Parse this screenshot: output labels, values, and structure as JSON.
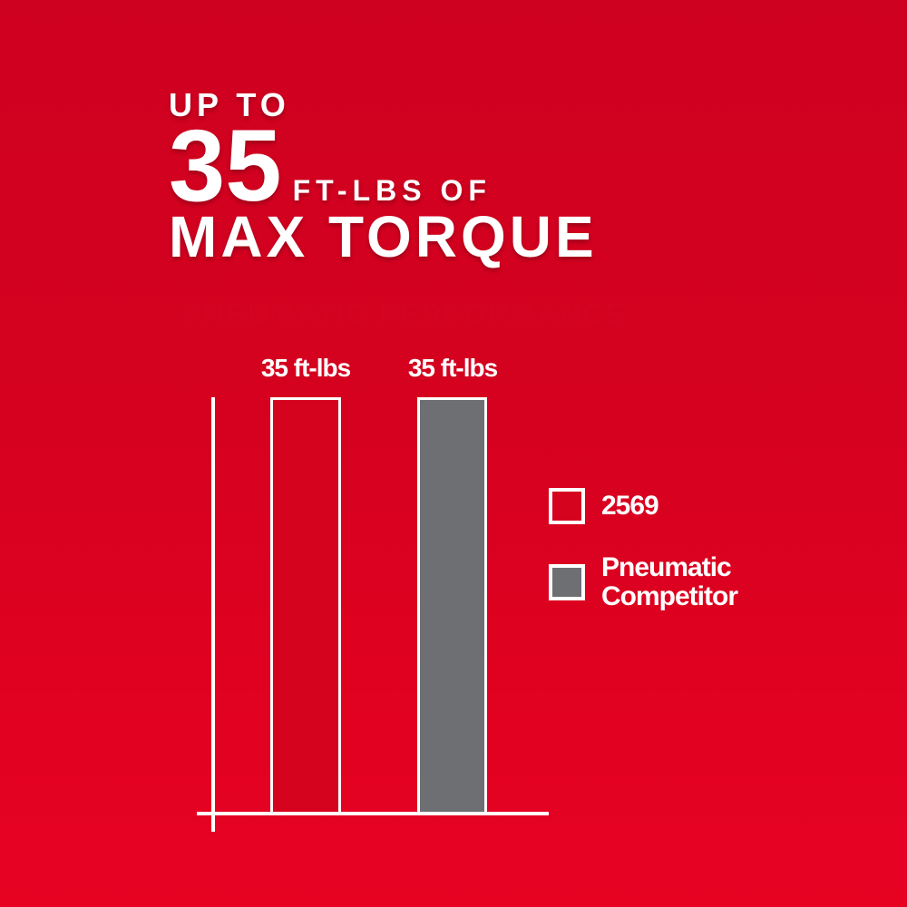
{
  "header": {
    "eyebrow": "UP TO",
    "big_value": "35",
    "unit_phrase": "FT-LBS OF",
    "headline": "MAX TORQUE"
  },
  "chart_data": {
    "type": "bar",
    "title": "PNEUMATIC PERFORMANCE",
    "categories": [
      "2569",
      "Pneumatic Competitor"
    ],
    "values": [
      35,
      35
    ],
    "unit": "ft-lbs",
    "bar_labels": [
      "35 ft-lbs",
      "35 ft-lbs"
    ],
    "series_colors": [
      "#d6031f",
      "#6e6f72"
    ],
    "ylim": [
      0,
      35
    ],
    "xlabel": "",
    "ylabel": "",
    "gridlines": false,
    "axis_tick_labels": false,
    "legend_position": "right",
    "legend": [
      {
        "label": "2569",
        "color": "#d6031f"
      },
      {
        "label": "Pneumatic Competitor",
        "color": "#6e6f72"
      }
    ]
  },
  "colors": {
    "background_red_top": "#cf0120",
    "background_red_bottom": "#e70222",
    "panel_black": "#000000",
    "brand_red": "#d6031f",
    "competitor_gray": "#6e6f72",
    "title_red": "#d40321",
    "axis_white": "#ffffff",
    "header_text_white": "#ffffff"
  }
}
